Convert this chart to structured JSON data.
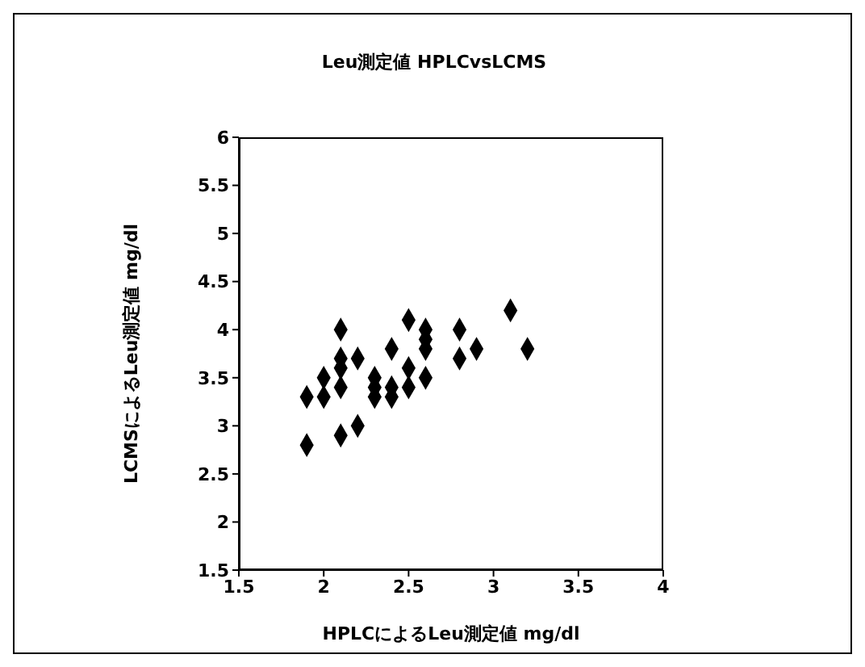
{
  "chart_data": {
    "type": "scatter",
    "title": "Leu測定値  HPLCvsLCMS",
    "xlabel": "HPLCによるLeu測定値  mg/dl",
    "ylabel": "LCMSによるLeu測定値  mg/dl",
    "x": [
      1.9,
      1.9,
      2.0,
      2.0,
      2.1,
      2.1,
      2.1,
      2.1,
      2.1,
      2.2,
      2.2,
      2.3,
      2.3,
      2.3,
      2.4,
      2.4,
      2.4,
      2.5,
      2.5,
      2.5,
      2.6,
      2.6,
      2.6,
      2.6,
      2.8,
      2.8,
      2.9,
      3.1,
      3.2
    ],
    "values": [
      3.3,
      2.8,
      3.5,
      3.3,
      4.0,
      3.7,
      3.6,
      3.4,
      2.9,
      3.7,
      3.0,
      3.5,
      3.4,
      3.3,
      3.8,
      3.4,
      3.3,
      4.1,
      3.6,
      3.4,
      4.0,
      3.9,
      3.8,
      3.5,
      4.0,
      3.7,
      3.8,
      4.2,
      3.8
    ],
    "color": "#000000",
    "marker": "diamond",
    "xlim": [
      1.5,
      4
    ],
    "xticks": [
      1.5,
      2,
      2.5,
      3,
      3.5,
      4
    ],
    "ylim": [
      1.5,
      6
    ],
    "yticks": [
      1.5,
      2,
      2.5,
      3,
      3.5,
      4,
      4.5,
      5,
      5.5,
      6
    ],
    "grid": false,
    "legend": false
  }
}
